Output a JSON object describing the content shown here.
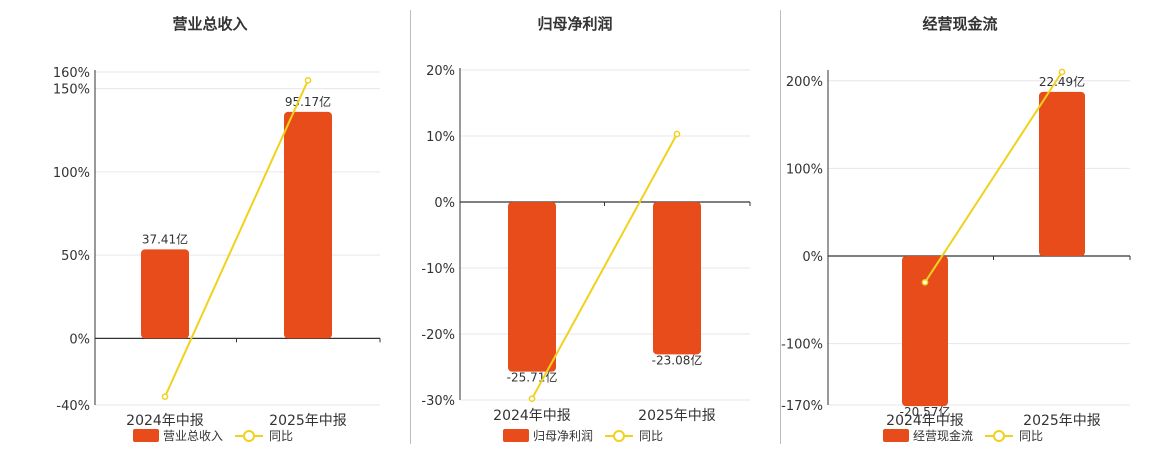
{
  "colors": {
    "bar": "#E84C1A",
    "line": "#F0D21C",
    "axis": "#333333",
    "grid": "#e6e6ef",
    "text": "#333333"
  },
  "chart_data": [
    {
      "type": "bar",
      "title": "营业总收入",
      "categories": [
        "2024年中报",
        "2025年中报"
      ],
      "ylim": [
        -40,
        160
      ],
      "yticks": [
        -40,
        0,
        50,
        100,
        150,
        160
      ],
      "tick_format": "%",
      "series": [
        {
          "name": "营业总收入",
          "type": "bar",
          "values": [
            37.41,
            95.17
          ],
          "labels": [
            "37.41亿",
            "95.17亿"
          ]
        },
        {
          "name": "同比",
          "type": "line",
          "values": [
            -35,
            155
          ]
        }
      ],
      "legend": "bottom"
    },
    {
      "type": "bar",
      "title": "归母净利润",
      "categories": [
        "2024年中报",
        "2025年中报"
      ],
      "ylim": [
        -30,
        20
      ],
      "yticks": [
        -30,
        -20,
        -10,
        0,
        10,
        20
      ],
      "tick_format": "%",
      "series": [
        {
          "name": "归母净利润",
          "type": "bar",
          "values": [
            -25.71,
            -23.08
          ],
          "labels": [
            "-25.71亿",
            "-23.08亿"
          ]
        },
        {
          "name": "同比",
          "type": "line",
          "values": [
            -29.8,
            10.3
          ]
        }
      ],
      "legend": "bottom"
    },
    {
      "type": "bar",
      "title": "经营现金流",
      "categories": [
        "2024年中报",
        "2025年中报"
      ],
      "ylim": [
        -170,
        210
      ],
      "yticks": [
        -170,
        -100,
        0,
        100,
        200
      ],
      "tick_format": "%",
      "series": [
        {
          "name": "经营现金流",
          "type": "bar",
          "values": [
            -20.57,
            22.49
          ],
          "labels": [
            "-20.57亿",
            "22.49亿"
          ]
        },
        {
          "name": "同比",
          "type": "line",
          "values": [
            -30,
            210
          ]
        }
      ],
      "legend": "bottom"
    }
  ]
}
